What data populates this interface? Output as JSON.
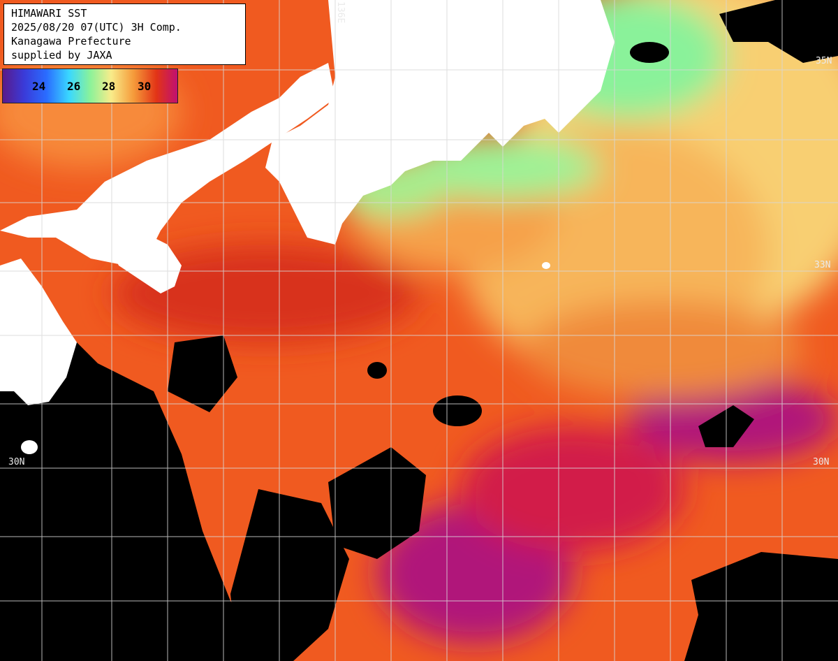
{
  "title_box": {
    "line1": "HIMAWARI SST",
    "line2": "2025/08/20 07(UTC) 3H Comp.",
    "line3": "Kanagawa Prefecture",
    "line4": "supplied by JAXA"
  },
  "color_scale": {
    "ticks": [
      "24",
      "26",
      "28",
      "30"
    ],
    "colors": {
      "low": "#5a1a8a",
      "blue": "#2a5cff",
      "cyan": "#3ad8ff",
      "green": "#8af29a",
      "yellow": "#f8ec8a",
      "orange": "#f59a3a",
      "red": "#e23416",
      "high": "#c01072"
    }
  },
  "grid_labels": {
    "lat_35": "35N",
    "lat_33_right": "33N",
    "lat_30_left": "30N",
    "lat_30_right": "30N",
    "lon_136": "136E"
  },
  "map_colors": {
    "land": "#ffffff",
    "cloud": "#000000",
    "grid": "#d8d8d8",
    "sea_base": "#f05a20"
  }
}
